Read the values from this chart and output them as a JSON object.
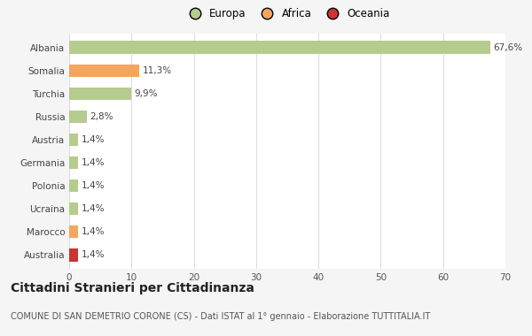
{
  "categories": [
    "Albania",
    "Somalia",
    "Turchia",
    "Russia",
    "Austria",
    "Germania",
    "Polonia",
    "Ucraina",
    "Marocco",
    "Australia"
  ],
  "values": [
    67.6,
    11.3,
    9.9,
    2.8,
    1.4,
    1.4,
    1.4,
    1.4,
    1.4,
    1.4
  ],
  "labels": [
    "67,6%",
    "11,3%",
    "9,9%",
    "2,8%",
    "1,4%",
    "1,4%",
    "1,4%",
    "1,4%",
    "1,4%",
    "1,4%"
  ],
  "colors": [
    "#b5cc8e",
    "#f4a65e",
    "#b5cc8e",
    "#b5cc8e",
    "#b5cc8e",
    "#b5cc8e",
    "#b5cc8e",
    "#b5cc8e",
    "#f4a65e",
    "#cc3333"
  ],
  "legend_items": [
    {
      "label": "Europa",
      "color": "#b5cc8e"
    },
    {
      "label": "Africa",
      "color": "#f4a65e"
    },
    {
      "label": "Oceania",
      "color": "#cc3333"
    }
  ],
  "xlim": [
    0,
    70
  ],
  "xticks": [
    0,
    10,
    20,
    30,
    40,
    50,
    60,
    70
  ],
  "title": "Cittadini Stranieri per Cittadinanza",
  "subtitle": "COMUNE DI SAN DEMETRIO CORONE (CS) - Dati ISTAT al 1° gennaio - Elaborazione TUTTITALIA.IT",
  "background_color": "#f5f5f5",
  "plot_bg_color": "#ffffff",
  "grid_color": "#dddddd",
  "bar_height": 0.55,
  "label_fontsize": 7.5,
  "tick_fontsize": 7.5,
  "title_fontsize": 10,
  "subtitle_fontsize": 7
}
